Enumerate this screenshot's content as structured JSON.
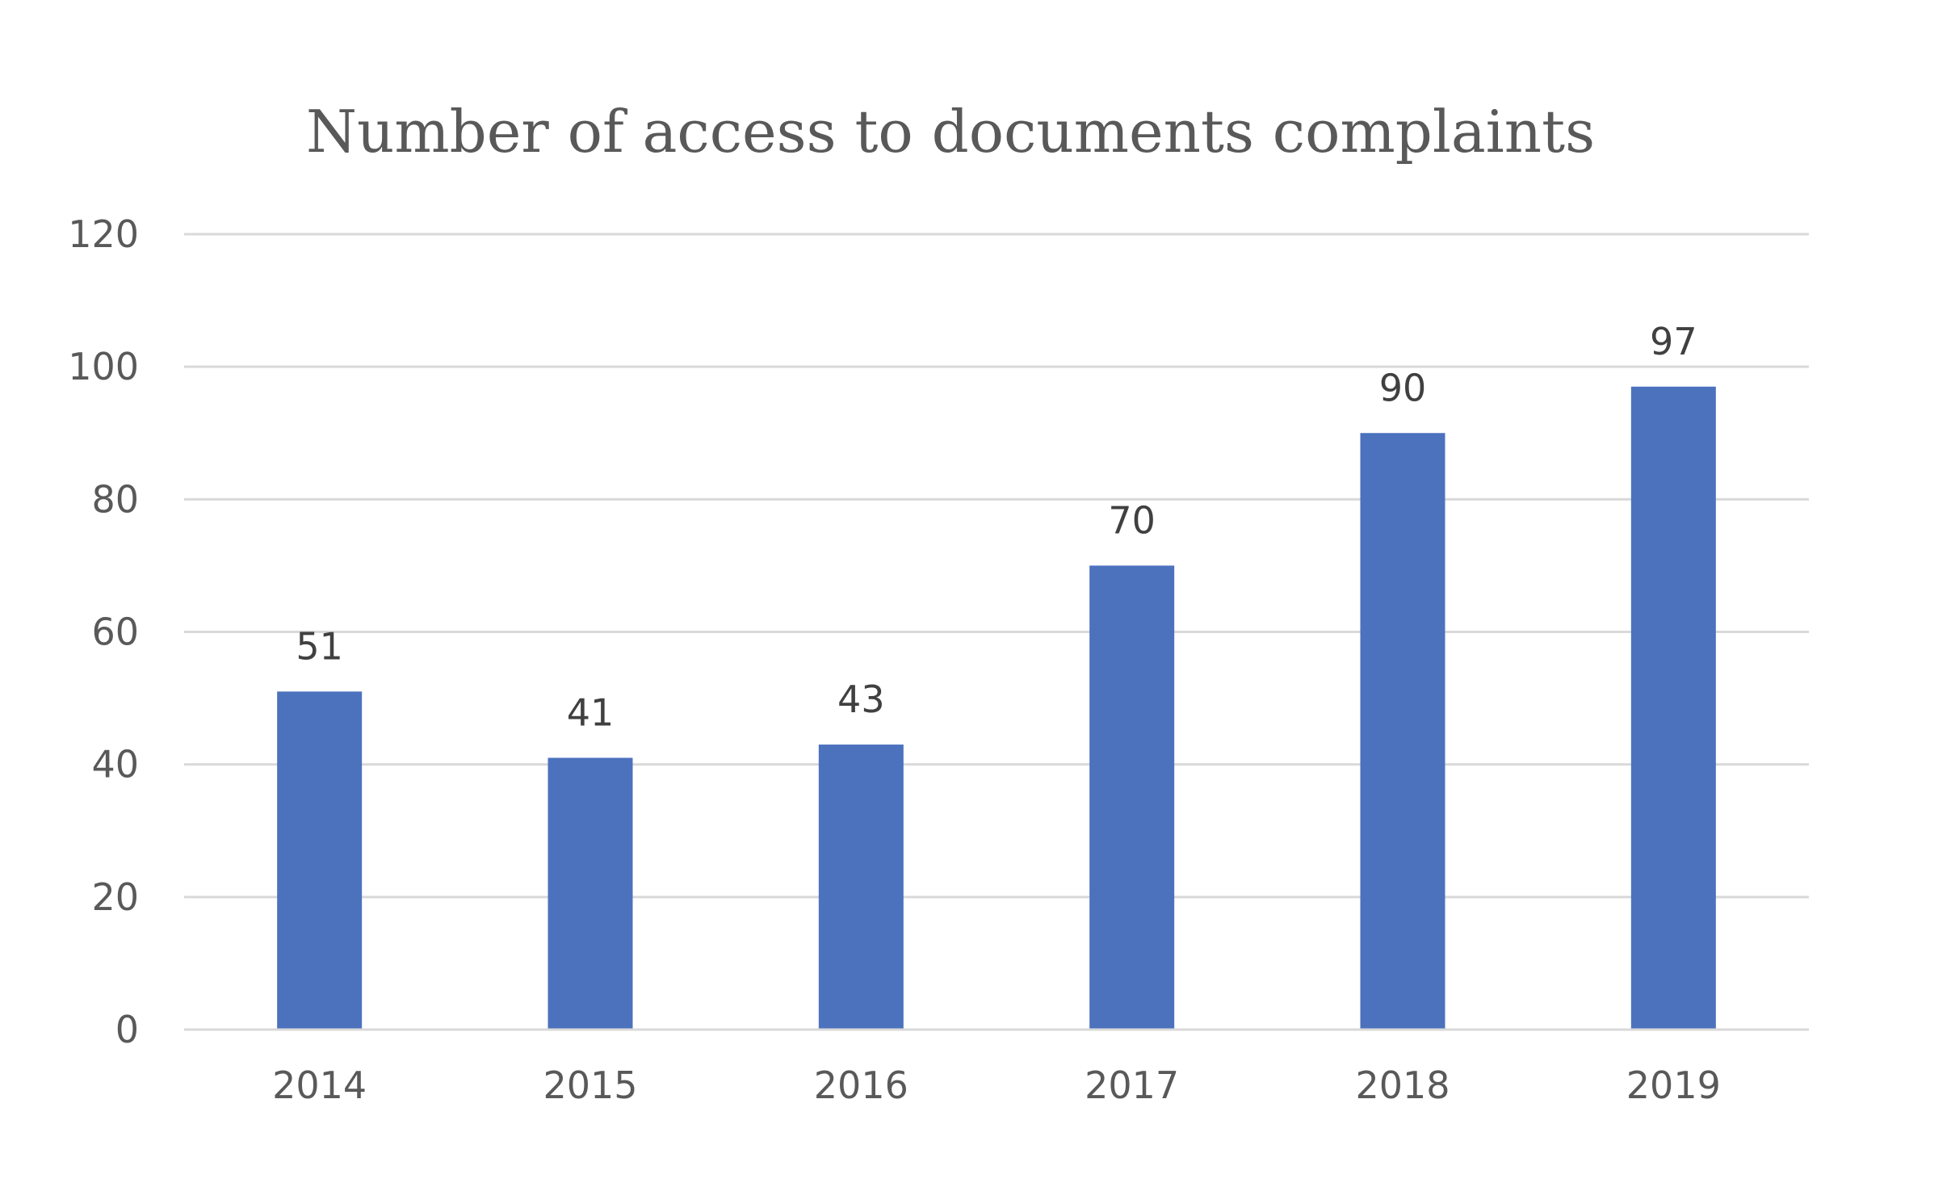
{
  "chart_data": {
    "type": "bar",
    "title": "Number of access to documents complaints",
    "xlabel": "",
    "ylabel": "",
    "categories": [
      "2014",
      "2015",
      "2016",
      "2017",
      "2018",
      "2019"
    ],
    "values": [
      51,
      41,
      43,
      70,
      90,
      97
    ],
    "data_labels": [
      "51",
      "41",
      "43",
      "70",
      "90",
      "97"
    ],
    "ylim": [
      0,
      120
    ],
    "y_ticks": [
      "0",
      "20",
      "40",
      "60",
      "80",
      "100",
      "120"
    ],
    "grid": true,
    "legend": "none",
    "bar_color": "#4c72be"
  }
}
